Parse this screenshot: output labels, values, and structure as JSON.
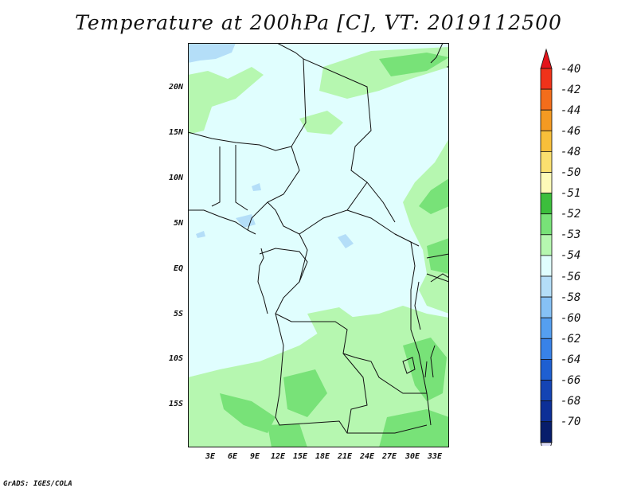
{
  "title": "Temperature at 200hPa [C], VT: 2019112500",
  "footer": "GrADS: IGES/COLA",
  "lat_labels": [
    "20N",
    "15N",
    "10N",
    "5N",
    "EQ",
    "5S",
    "10S",
    "15S"
  ],
  "lon_labels": [
    "3E",
    "6E",
    "9E",
    "12E",
    "15E",
    "18E",
    "21E",
    "24E",
    "27E",
    "30E",
    "33E"
  ],
  "colorbar": {
    "labels": [
      "-40",
      "-42",
      "-44",
      "-46",
      "-48",
      "-50",
      "-51",
      "-52",
      "-53",
      "-54",
      "-56",
      "-58",
      "-60",
      "-62",
      "-64",
      "-66",
      "-68",
      "-70"
    ],
    "colors": [
      "#e3141b",
      "#f0321a",
      "#f36d1b",
      "#f49a22",
      "#f8bf3a",
      "#fbe06f",
      "#fdfab8",
      "#3cbe3c",
      "#78e278",
      "#b6f7b0",
      "#e0fefe",
      "#b4def8",
      "#86c1f5",
      "#559ff0",
      "#3882e8",
      "#1e5fd1",
      "#1444b4",
      "#0c2f97",
      "#071d6b",
      "#dcdcf6"
    ]
  },
  "map_colors": {
    "background": "#e0fefe",
    "light_green": "#b6f7b0",
    "green": "#78e278",
    "light_blue": "#b4def8",
    "blue": "#86c1f5"
  }
}
